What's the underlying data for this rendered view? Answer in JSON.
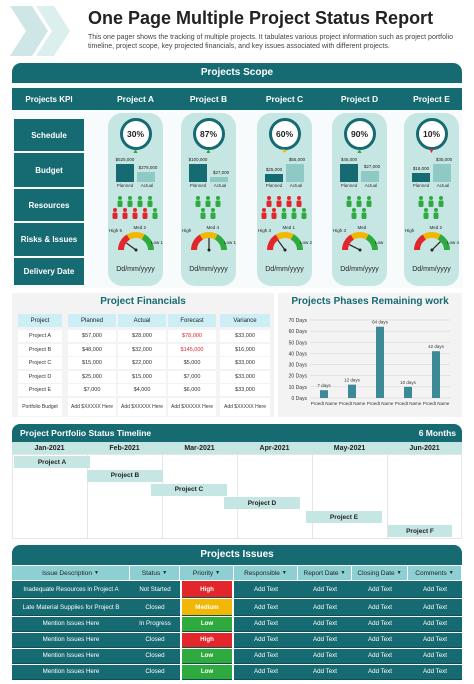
{
  "title": "One Page Multiple Project Status Report",
  "subtitle": "This one pager shows the tracking of multiple projects. It tabulates various project information such as project portfolio timeline, project scope, key projected financials, and key issues associated with different projects.",
  "scope": {
    "heading": "Projects Scope",
    "kpi_label": "Projects KPI",
    "projects": [
      "Project A",
      "Project B",
      "Project C",
      "Project D",
      "Project E"
    ],
    "rows": [
      "Schedule",
      "Budget",
      "Resources",
      "Risks & Issues",
      "Delivery Date"
    ],
    "schedule": [
      {
        "pct": "30%",
        "dir": "up",
        "color": "#2eaa3f"
      },
      {
        "pct": "87%",
        "dir": "up",
        "color": "#2eaa3f"
      },
      {
        "pct": "60%",
        "dir": "right",
        "color": "#f2b705"
      },
      {
        "pct": "90%",
        "dir": "up",
        "color": "#2eaa3f"
      },
      {
        "pct": "10%",
        "dir": "down",
        "color": "#e3262b"
      }
    ],
    "budget_legend": [
      "Planned",
      "Actual"
    ],
    "budget": [
      {
        "planned": "$525,000",
        "actual": "$278,000",
        "p": 525,
        "a": 278
      },
      {
        "planned": "$100,000",
        "actual": "$27,000",
        "p": 100,
        "a": 27
      },
      {
        "planned": "$25,000",
        "actual": "$56,000",
        "p": 25,
        "a": 56
      },
      {
        "planned": "$45,000",
        "actual": "$27,000",
        "p": 45,
        "a": 27
      },
      {
        "planned": "$18,000",
        "actual": "$35,000",
        "p": 18,
        "a": 35
      }
    ],
    "resources": [
      [
        "g",
        "g",
        "g",
        "g",
        "r",
        "r",
        "r",
        "r",
        "g"
      ],
      [
        "g",
        "g",
        "g",
        "g",
        "g"
      ],
      [
        "r",
        "r",
        "r",
        "r",
        "r",
        "r",
        "g",
        "g",
        "g"
      ],
      [
        "g",
        "g",
        "g",
        "g",
        "g"
      ],
      [
        "g",
        "g",
        "g",
        "g",
        "g"
      ]
    ],
    "risks": [
      {
        "high": "High 5",
        "med": "Med 2",
        "low": "Low 1",
        "needle": 0.2
      },
      {
        "high": "High",
        "med": "Med 4",
        "low": "Low 1",
        "needle": 0.5
      },
      {
        "high": "High 3",
        "med": "Med 1",
        "low": "Low 2",
        "needle": 0.3
      },
      {
        "high": "High 3",
        "med": "Med",
        "low": "Low",
        "needle": 0.15
      },
      {
        "high": "High",
        "med": "Med 2",
        "low": "Low 4",
        "needle": 0.75
      }
    ],
    "delivery": [
      "Dd/mm/yyyy",
      "Dd/mm/yyyy",
      "Dd/mm/yyyy",
      "Dd/mm/yyyy",
      "Dd/mm/yyyy"
    ]
  },
  "financials": {
    "heading": "Project Financials",
    "columns": [
      "Project",
      "Planned",
      "Actual",
      "Forecast",
      "Variance"
    ],
    "rows": [
      [
        "Project A",
        "$57,000",
        "$28,000",
        "$78,000",
        "$33,000"
      ],
      [
        "Project B",
        "$48,000",
        "$32,000",
        "$145,000",
        "$16,000"
      ],
      [
        "Project C",
        "$15,000",
        "$22,000",
        "$5,000",
        "$33,000"
      ],
      [
        "Project D",
        "$25,000",
        "$15,000",
        "$7,000",
        "$33,000"
      ],
      [
        "Project E",
        "$7,000",
        "$4,000",
        "$6,000",
        "$33,000"
      ],
      [
        "Portfolio Budget",
        "Add $XXXXX Here",
        "Add $XXXXX Here",
        "Add $XXXXX Here",
        "Add $XXXXX Here"
      ]
    ],
    "red_cells": [
      "0-3",
      "1-3"
    ]
  },
  "chart_data": {
    "type": "bar",
    "title": "Projects Phases Remaining work",
    "categories": [
      "Proedt Name",
      "Proedt Name",
      "Proedt Name",
      "Proedt Name",
      "Proedt Name"
    ],
    "values": [
      7,
      12,
      64,
      10,
      42
    ],
    "data_labels": [
      "7 days",
      "12 days",
      "64 days",
      "10 days",
      "42 days"
    ],
    "ylim": [
      0,
      70
    ],
    "yticks": [
      "0 Days",
      "10 Days",
      "20 Days",
      "30 Days",
      "40 Days",
      "50 Days",
      "60 Days",
      "70 Days"
    ],
    "grid": true,
    "color": "#3c8a95"
  },
  "timeline": {
    "heading": "Project Portfolio Status Timeline",
    "duration": "6 Months",
    "months": [
      "Jan-2021",
      "Feb-2021",
      "Mar-2021",
      "Apr-2021",
      "May-2021",
      "Jun-2021"
    ],
    "bars": [
      "Project A",
      "Project B",
      "Project C",
      "Project D",
      "Project E",
      "Project F"
    ]
  },
  "issues": {
    "heading": "Projects Issues",
    "columns": [
      "Issue Description",
      "Status",
      "Priority",
      "Responsible",
      "Report Date",
      "Closing Date",
      "Comments"
    ],
    "rows": [
      [
        "Inadequate Resources in Project A",
        "Not Started",
        "High",
        "Add Text",
        "Add Text",
        "Add Text",
        "Add Text"
      ],
      [
        "Late Material Supplies for Project B",
        "Closed",
        "Medium",
        "Add Text",
        "Add Text",
        "Add Text",
        "Add Text"
      ],
      [
        "Mention Issues Here",
        "In Progress",
        "Low",
        "Add Text",
        "Add Text",
        "Add Text",
        "Add Text"
      ],
      [
        "Mention Issues Here",
        "Closed",
        "High",
        "Add Text",
        "Add Text",
        "Add Text",
        "Add Text"
      ],
      [
        "Mention Issues Here",
        "Closed",
        "Low",
        "Add Text",
        "Add Text",
        "Add Text",
        "Add Text"
      ],
      [
        "Mention Issues Here",
        "Closed",
        "Low",
        "Add Text",
        "Add Text",
        "Add Text",
        "Add Text"
      ]
    ],
    "priority_colors": {
      "High": "#e3262b",
      "Medium": "#f2b705",
      "Low": "#2eaa3f"
    }
  }
}
